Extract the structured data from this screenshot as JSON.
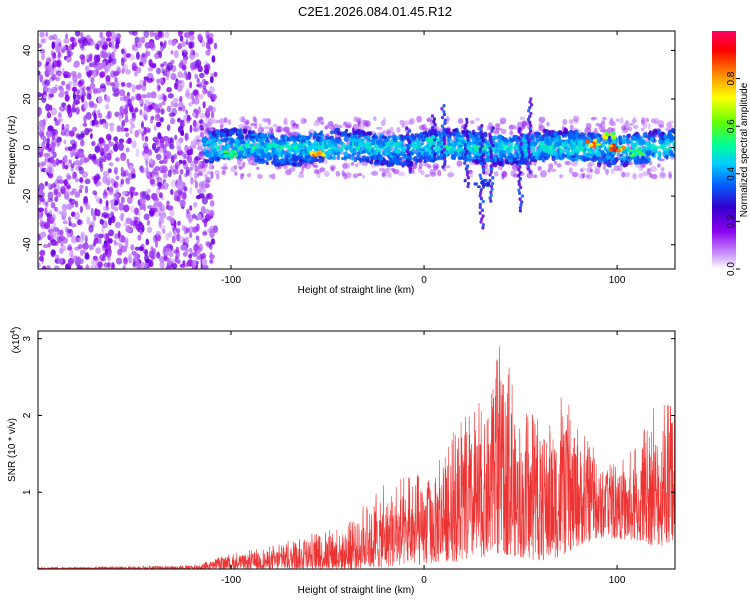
{
  "title": "C2E1.2026.084.01.45.R12",
  "colors": {
    "snr_line": "#ee3333",
    "axis": "#000000",
    "colormap": [
      "#ffffff",
      "#cc99ff",
      "#8800ee",
      "#3300cc",
      "#0066ff",
      "#00ccff",
      "#00ff99",
      "#66ff00",
      "#ffff00",
      "#ff8800",
      "#ff0000",
      "#ff0066"
    ]
  },
  "chart_data": [
    {
      "type": "heatmap",
      "name": "spectrogram",
      "xlabel": "Height of straight line (km)",
      "ylabel": "Frequency (Hz)",
      "xlim": [
        -200,
        130
      ],
      "ylim": [
        -50,
        48
      ],
      "xticks": [
        -100,
        0,
        100
      ],
      "xtick_labels": [
        "-100",
        "0",
        "100"
      ],
      "yticks": [
        -40,
        -20,
        0,
        20,
        40
      ],
      "ytick_labels": [
        "-40",
        "-20",
        "0",
        "20",
        "40"
      ],
      "colorbar": {
        "label": "Normalized spectral amplitude",
        "range": [
          0,
          1
        ],
        "ticks": [
          0.0,
          0.2,
          0.4,
          0.6,
          0.8
        ],
        "tick_labels": [
          "0.0",
          "0.2",
          "0.4",
          "0.6",
          "0.8"
        ]
      },
      "noise_region_x": [
        -200,
        -112
      ],
      "signal_band": {
        "x_range": [
          -118,
          130
        ],
        "center_hz": 0,
        "half_width_hz": 6,
        "bright_spots": [
          {
            "x": -55,
            "y": -3,
            "amp": 0.95
          },
          {
            "x": -100,
            "y": -3,
            "amp": 0.6
          },
          {
            "x": -65,
            "y": 0,
            "amp": 0.55
          },
          {
            "x": 5,
            "y": 3,
            "amp": 0.55
          },
          {
            "x": 22,
            "y": 2,
            "amp": 0.5
          },
          {
            "x": 30,
            "y": -15,
            "amp": 0.35
          },
          {
            "x": 88,
            "y": 2,
            "amp": 0.9
          },
          {
            "x": 95,
            "y": 5,
            "amp": 0.75
          },
          {
            "x": 100,
            "y": 0,
            "amp": 0.95
          },
          {
            "x": 110,
            "y": -2,
            "amp": 0.6
          }
        ],
        "spikes": [
          {
            "x": 5,
            "y_min": -5,
            "y_max": 14
          },
          {
            "x": 22,
            "y_min": -16,
            "y_max": 12
          },
          {
            "x": 30,
            "y_min": -33,
            "y_max": 10
          },
          {
            "x": 35,
            "y_min": -22,
            "y_max": 8
          },
          {
            "x": 50,
            "y_min": -26,
            "y_max": 8
          },
          {
            "x": 55,
            "y_min": -10,
            "y_max": 20
          },
          {
            "x": 10,
            "y_min": -8,
            "y_max": 18
          },
          {
            "x": -8,
            "y_min": -10,
            "y_max": 8
          }
        ]
      }
    },
    {
      "type": "line",
      "name": "snr",
      "xlabel": "Height of straight line (km)",
      "ylabel": "SNR (10 * v/v)",
      "scale_label": "(x10",
      "scale_exponent": "4",
      "scale_close": ")",
      "xlim": [
        -200,
        130
      ],
      "ylim": [
        0,
        3.1
      ],
      "xticks": [
        -100,
        0,
        100
      ],
      "xtick_labels": [
        "-100",
        "0",
        "100"
      ],
      "yticks": [
        1,
        2,
        3
      ],
      "ytick_labels": [
        "1",
        "2",
        "3"
      ],
      "envelope": {
        "x": [
          -200,
          -120,
          -100,
          -80,
          -60,
          -40,
          -20,
          -10,
          0,
          10,
          20,
          30,
          40,
          50,
          60,
          70,
          80,
          90,
          100,
          110,
          120,
          130
        ],
        "max": [
          0.02,
          0.05,
          0.2,
          0.3,
          0.45,
          0.6,
          1.15,
          1.2,
          1.3,
          1.6,
          2.0,
          2.2,
          3.1,
          2.0,
          2.1,
          2.3,
          2.0,
          1.5,
          1.4,
          1.6,
          2.2,
          2.2
        ],
        "min": [
          0.0,
          0.0,
          0.0,
          0.0,
          0.0,
          0.0,
          0.02,
          0.05,
          0.05,
          0.1,
          0.1,
          0.15,
          0.2,
          0.15,
          0.1,
          0.15,
          0.3,
          0.4,
          0.4,
          0.35,
          0.3,
          0.3
        ]
      }
    }
  ]
}
